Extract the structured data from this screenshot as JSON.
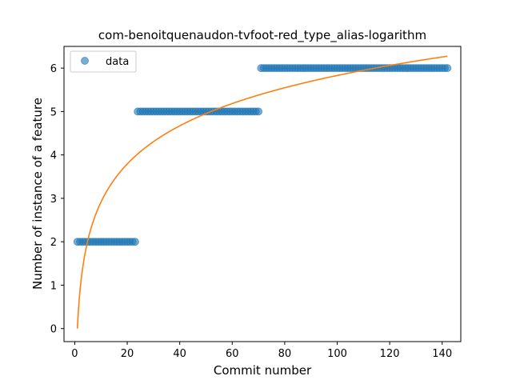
{
  "chart_data": {
    "type": "scatter",
    "title": "com-benoitquenaudon-tvfoot-red_type_alias-logarithm",
    "xlabel": "Commit number",
    "ylabel": "Number of instance of a feature",
    "xlim": [
      -4.1,
      147.1
    ],
    "ylim": [
      -0.3,
      6.5
    ],
    "xticks": [
      0,
      20,
      40,
      60,
      80,
      100,
      120,
      140
    ],
    "yticks": [
      0,
      1,
      2,
      3,
      4,
      5,
      6
    ],
    "grid": false,
    "legend_position": "top-left",
    "series": [
      {
        "name": "data",
        "kind": "scatter",
        "color": "#1f77b4",
        "segments": [
          {
            "x_start": 1,
            "x_end": 23,
            "y": 2
          },
          {
            "x_start": 24,
            "x_end": 70,
            "y": 5
          },
          {
            "x_start": 71,
            "x_end": 142,
            "y": 6
          }
        ]
      },
      {
        "kind": "line",
        "color": "#ff7f0e",
        "fit": {
          "model": "a + b*ln(x)",
          "a": 0.0,
          "b": 1.266,
          "x_start": 1,
          "x_end": 142
        }
      }
    ]
  }
}
